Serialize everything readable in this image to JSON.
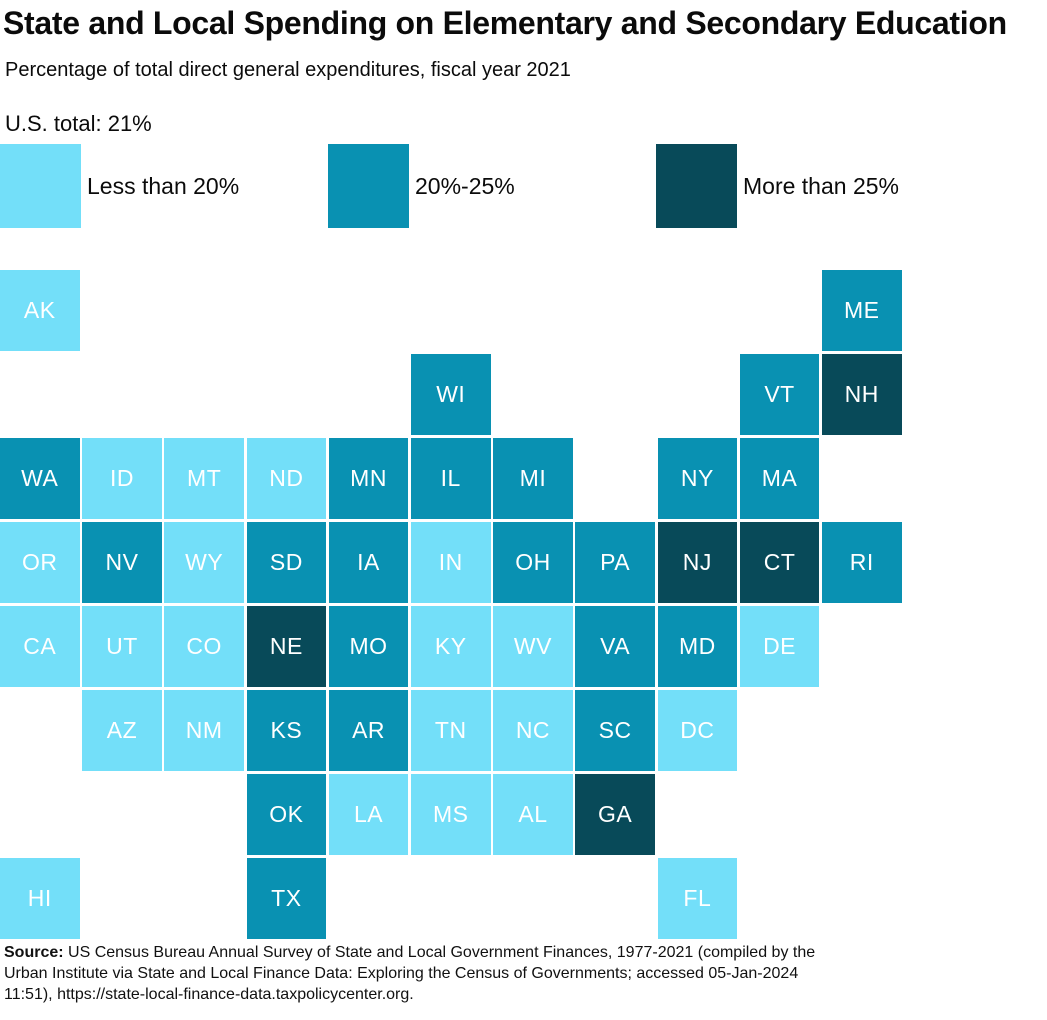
{
  "header": {
    "title": "State and Local Spending on Elementary and Secondary Education",
    "subtitle": "Percentage of total direct general expenditures, fiscal year 2021",
    "us_total": "U.S. total: 21%"
  },
  "legend": {
    "items": [
      {
        "category": "low",
        "label": "Less than 20%",
        "color": "#73DFF9"
      },
      {
        "category": "mid",
        "label": "20%-25%",
        "color": "#0991B2"
      },
      {
        "category": "high",
        "label": "More than 25%",
        "color": "#084A59"
      }
    ]
  },
  "chart_data": {
    "type": "heatmap",
    "title": "State and Local Spending on Elementary and Secondary Education",
    "subtitle": "Percentage of total direct general expenditures, fiscal year 2021",
    "note": "U.S. total: 21%",
    "legend_position": "top",
    "bins": {
      "low": "Less than 20%",
      "mid": "20%-25%",
      "high": "More than 25%"
    },
    "tile_label_color": "#FFFFFF",
    "states": [
      {
        "code": "AK",
        "row": 0,
        "col": 0,
        "bin": "low"
      },
      {
        "code": "ME",
        "row": 0,
        "col": 10,
        "bin": "mid"
      },
      {
        "code": "WI",
        "row": 1,
        "col": 5,
        "bin": "mid"
      },
      {
        "code": "VT",
        "row": 1,
        "col": 9,
        "bin": "mid"
      },
      {
        "code": "NH",
        "row": 1,
        "col": 10,
        "bin": "high"
      },
      {
        "code": "WA",
        "row": 2,
        "col": 0,
        "bin": "mid"
      },
      {
        "code": "ID",
        "row": 2,
        "col": 1,
        "bin": "low"
      },
      {
        "code": "MT",
        "row": 2,
        "col": 2,
        "bin": "low"
      },
      {
        "code": "ND",
        "row": 2,
        "col": 3,
        "bin": "low"
      },
      {
        "code": "MN",
        "row": 2,
        "col": 4,
        "bin": "mid"
      },
      {
        "code": "IL",
        "row": 2,
        "col": 5,
        "bin": "mid"
      },
      {
        "code": "MI",
        "row": 2,
        "col": 6,
        "bin": "mid"
      },
      {
        "code": "NY",
        "row": 2,
        "col": 8,
        "bin": "mid"
      },
      {
        "code": "MA",
        "row": 2,
        "col": 9,
        "bin": "mid"
      },
      {
        "code": "OR",
        "row": 3,
        "col": 0,
        "bin": "low"
      },
      {
        "code": "NV",
        "row": 3,
        "col": 1,
        "bin": "mid"
      },
      {
        "code": "WY",
        "row": 3,
        "col": 2,
        "bin": "low"
      },
      {
        "code": "SD",
        "row": 3,
        "col": 3,
        "bin": "mid"
      },
      {
        "code": "IA",
        "row": 3,
        "col": 4,
        "bin": "mid"
      },
      {
        "code": "IN",
        "row": 3,
        "col": 5,
        "bin": "low"
      },
      {
        "code": "OH",
        "row": 3,
        "col": 6,
        "bin": "mid"
      },
      {
        "code": "PA",
        "row": 3,
        "col": 7,
        "bin": "mid"
      },
      {
        "code": "NJ",
        "row": 3,
        "col": 8,
        "bin": "high"
      },
      {
        "code": "CT",
        "row": 3,
        "col": 9,
        "bin": "high"
      },
      {
        "code": "RI",
        "row": 3,
        "col": 10,
        "bin": "mid"
      },
      {
        "code": "CA",
        "row": 4,
        "col": 0,
        "bin": "low"
      },
      {
        "code": "UT",
        "row": 4,
        "col": 1,
        "bin": "low"
      },
      {
        "code": "CO",
        "row": 4,
        "col": 2,
        "bin": "low"
      },
      {
        "code": "NE",
        "row": 4,
        "col": 3,
        "bin": "high"
      },
      {
        "code": "MO",
        "row": 4,
        "col": 4,
        "bin": "mid"
      },
      {
        "code": "KY",
        "row": 4,
        "col": 5,
        "bin": "low"
      },
      {
        "code": "WV",
        "row": 4,
        "col": 6,
        "bin": "low"
      },
      {
        "code": "VA",
        "row": 4,
        "col": 7,
        "bin": "mid"
      },
      {
        "code": "MD",
        "row": 4,
        "col": 8,
        "bin": "mid"
      },
      {
        "code": "DE",
        "row": 4,
        "col": 9,
        "bin": "low"
      },
      {
        "code": "AZ",
        "row": 5,
        "col": 1,
        "bin": "low"
      },
      {
        "code": "NM",
        "row": 5,
        "col": 2,
        "bin": "low"
      },
      {
        "code": "KS",
        "row": 5,
        "col": 3,
        "bin": "mid"
      },
      {
        "code": "AR",
        "row": 5,
        "col": 4,
        "bin": "mid"
      },
      {
        "code": "TN",
        "row": 5,
        "col": 5,
        "bin": "low"
      },
      {
        "code": "NC",
        "row": 5,
        "col": 6,
        "bin": "low"
      },
      {
        "code": "SC",
        "row": 5,
        "col": 7,
        "bin": "mid"
      },
      {
        "code": "DC",
        "row": 5,
        "col": 8,
        "bin": "low"
      },
      {
        "code": "OK",
        "row": 6,
        "col": 3,
        "bin": "mid"
      },
      {
        "code": "LA",
        "row": 6,
        "col": 4,
        "bin": "low"
      },
      {
        "code": "MS",
        "row": 6,
        "col": 5,
        "bin": "low"
      },
      {
        "code": "AL",
        "row": 6,
        "col": 6,
        "bin": "low"
      },
      {
        "code": "GA",
        "row": 6,
        "col": 7,
        "bin": "high"
      },
      {
        "code": "HI",
        "row": 7,
        "col": 0,
        "bin": "low"
      },
      {
        "code": "TX",
        "row": 7,
        "col": 3,
        "bin": "mid"
      },
      {
        "code": "FL",
        "row": 7,
        "col": 8,
        "bin": "low"
      }
    ]
  },
  "footer": {
    "source_label": "Source:",
    "lines": [
      " US Census Bureau Annual Survey of State and Local Government Finances, 1977-2021 (compiled by the",
      "Urban Institute via State and Local Finance Data: Exploring the Census of Governments; accessed 05-Jan-2024",
      "11:51), https://state-local-finance-data.taxpolicycenter.org."
    ]
  }
}
